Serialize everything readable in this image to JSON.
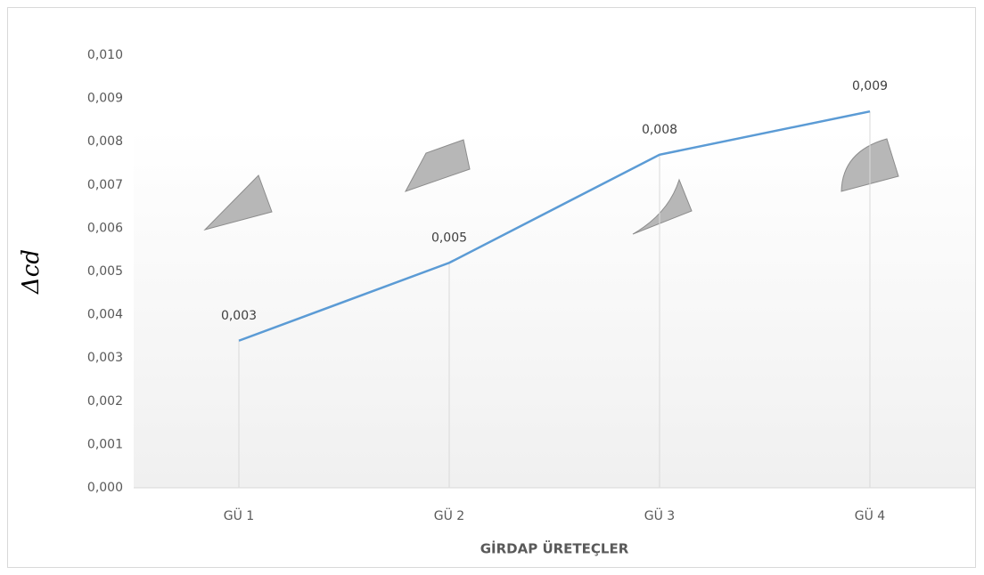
{
  "chart_data": {
    "type": "line",
    "ylabel": "Δcd",
    "xlabel": "GİRDAP ÜRETEÇLER",
    "categories": [
      "GÜ 1",
      "GÜ 2",
      "GÜ 3",
      "GÜ 4"
    ],
    "values": [
      0.0034,
      0.0052,
      0.0077,
      0.0087
    ],
    "value_labels": [
      "0,003",
      "0,005",
      "0,008",
      "0,009"
    ],
    "color": "#5b9bd5",
    "ylim": [
      0,
      0.01
    ],
    "yticks": [
      {
        "value": 0,
        "label": "0,000"
      },
      {
        "value": 0.001,
        "label": "0,001"
      },
      {
        "value": 0.002,
        "label": "0,002"
      },
      {
        "value": 0.003,
        "label": "0,003"
      },
      {
        "value": 0.004,
        "label": "0,004"
      },
      {
        "value": 0.005,
        "label": "0,005"
      },
      {
        "value": 0.006,
        "label": "0,006"
      },
      {
        "value": 0.007,
        "label": "0,007"
      },
      {
        "value": 0.008,
        "label": "0,008"
      },
      {
        "value": 0.009,
        "label": "0,009"
      },
      {
        "value": 0.01,
        "label": "0,010"
      }
    ]
  }
}
